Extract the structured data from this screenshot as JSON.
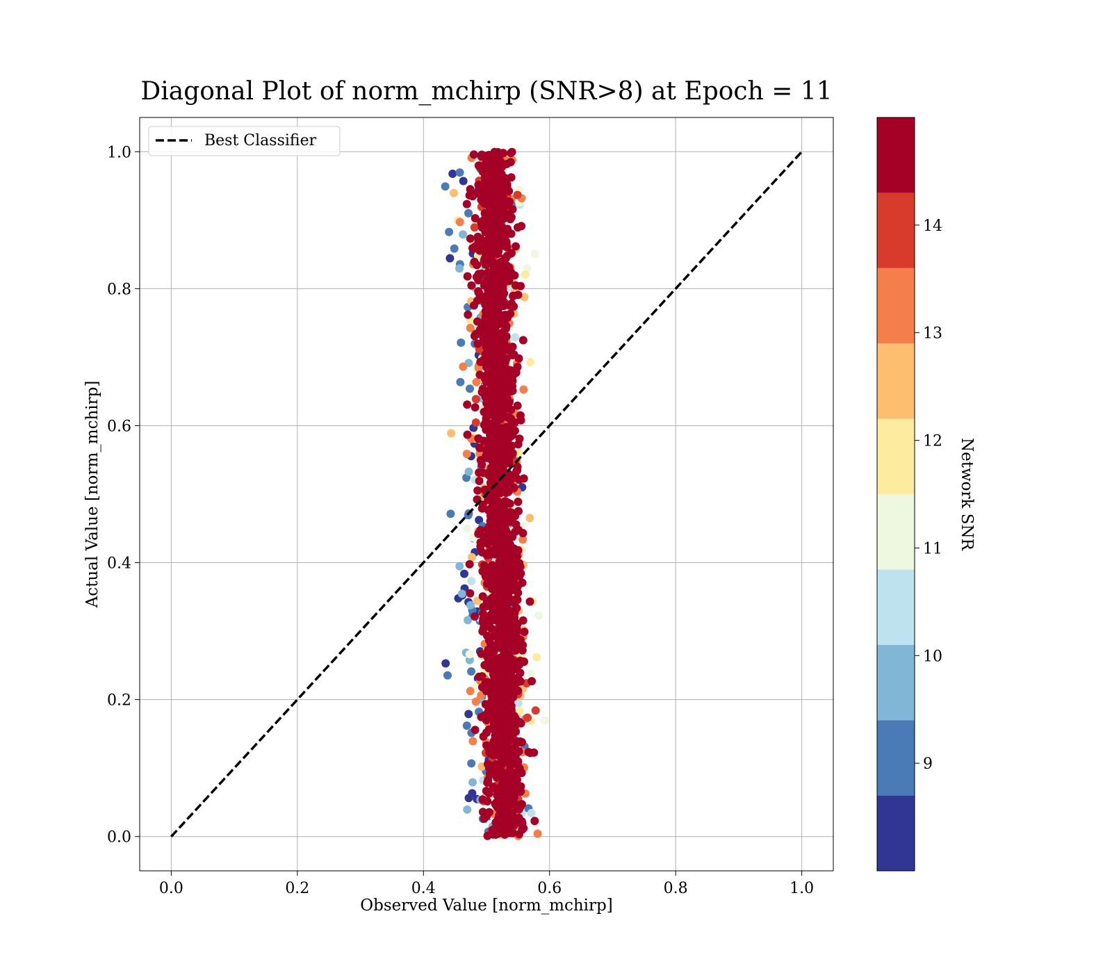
{
  "chart_data": {
    "type": "scatter",
    "title": "Diagonal Plot of norm_mchirp (SNR>8) at Epoch = 11",
    "xlabel": "Observed Value [norm_mchirp]",
    "ylabel": "Actual Value [norm_mchirp]",
    "xlim": [
      -0.05,
      1.05
    ],
    "ylim": [
      -0.05,
      1.05
    ],
    "xticks": [
      "0.0",
      "0.2",
      "0.4",
      "0.6",
      "0.8",
      "1.0"
    ],
    "yticks": [
      "0.0",
      "0.2",
      "0.4",
      "0.6",
      "0.8",
      "1.0"
    ],
    "grid": true,
    "legend": {
      "placement": "top-left",
      "entries": [
        "Best Classifier"
      ]
    },
    "reference_line": {
      "name": "Best Classifier",
      "x": [
        0.0,
        1.0
      ],
      "y": [
        0.0,
        1.0
      ],
      "style": "dashed",
      "color": "#000000"
    },
    "scatter": {
      "x_center_at_y0": 0.53,
      "x_center_at_y1": 0.51,
      "x_spread": 0.018,
      "y_range": [
        0.0,
        1.0
      ],
      "color_by": "Network SNR",
      "note_points_dominant_snr": ">14"
    },
    "colorbar": {
      "label": "Network SNR",
      "range": [
        8,
        15
      ],
      "ticks": [
        "9",
        "10",
        "11",
        "12",
        "13",
        "14"
      ],
      "bins": [
        8,
        8.7,
        9.4,
        10.1,
        10.8,
        11.5,
        12.2,
        12.9,
        13.6,
        14.3,
        15
      ],
      "colors": [
        "#313695",
        "#4a7bb7",
        "#82b6d6",
        "#bfe3ee",
        "#eef7e0",
        "#fdeca0",
        "#fdbe70",
        "#f47f4b",
        "#d83a2c",
        "#a50026"
      ]
    }
  }
}
